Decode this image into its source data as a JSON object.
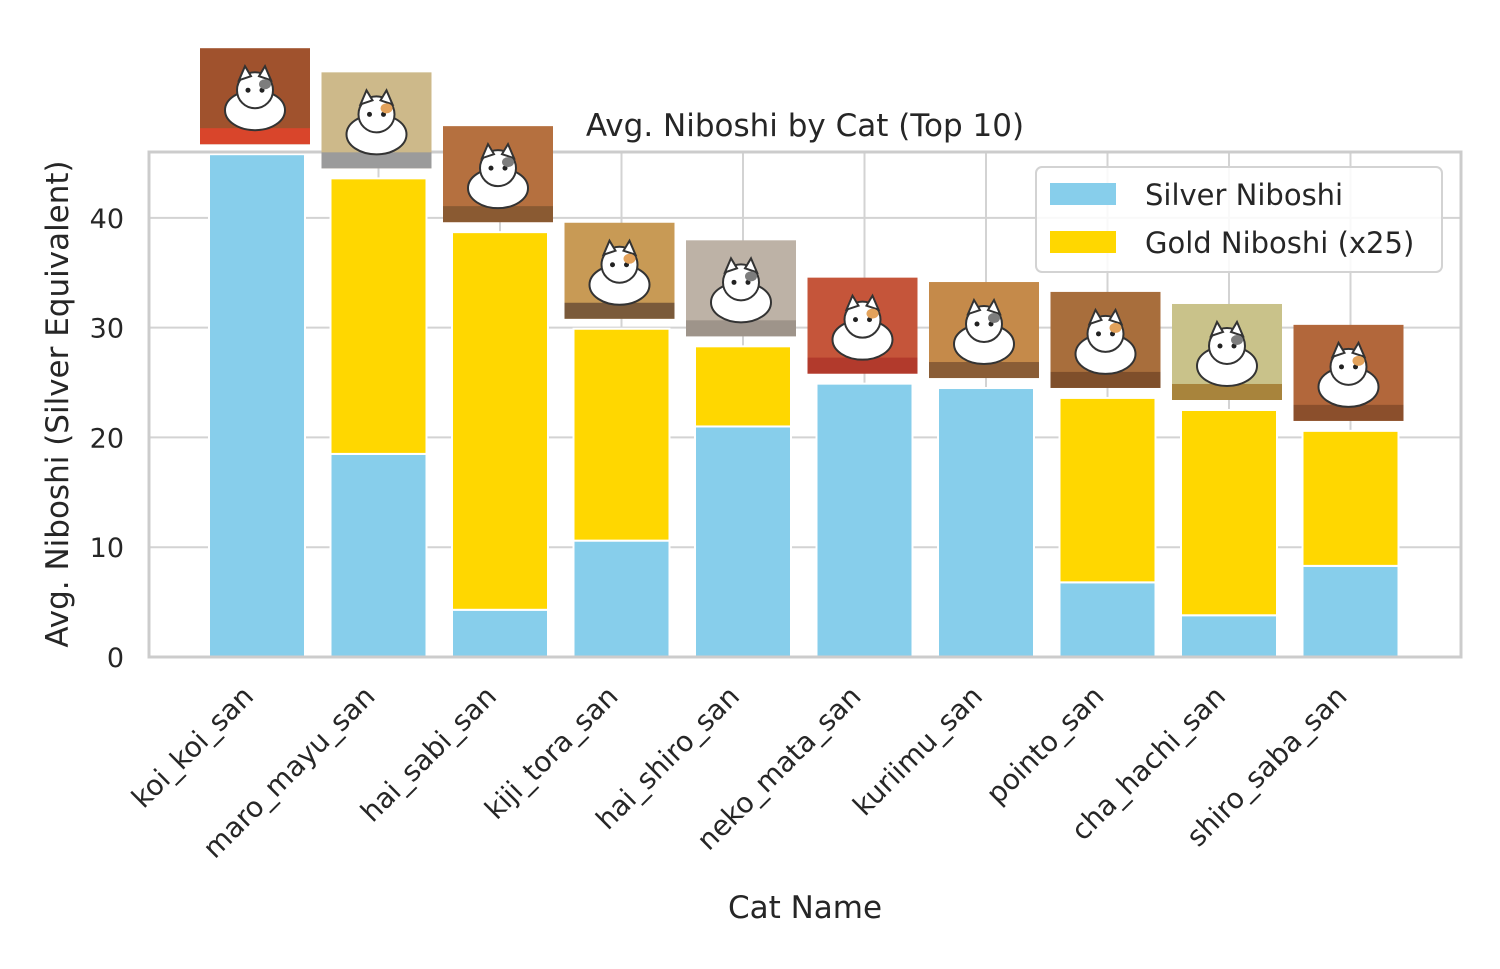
{
  "chart_data": {
    "type": "bar",
    "stacked": true,
    "title": "Avg. Niboshi by Cat (Top 10)",
    "xlabel": "Cat Name",
    "ylabel": "Avg. Niboshi (Silver Equivalent)",
    "ylim": [
      0,
      46
    ],
    "yticks": [
      0,
      10,
      20,
      30,
      40
    ],
    "grid": true,
    "legend_position": "top-right",
    "categories": [
      "koi_koi_san",
      "maro_mayu_san",
      "hai_sabi_san",
      "kiji_tora_san",
      "hai_shiro_san",
      "neko_mata_san",
      "kuriimu_san",
      "pointo_san",
      "cha_hachi_san",
      "shiro_saba_san"
    ],
    "series": [
      {
        "name": "Silver Niboshi",
        "color": "#87CEEB",
        "values": [
          45.8,
          18.5,
          4.3,
          10.6,
          21.0,
          24.9,
          24.5,
          6.8,
          3.8,
          8.3
        ]
      },
      {
        "name": "Gold Niboshi (x25)",
        "color": "#FFD700",
        "values": [
          0,
          25.1,
          34.4,
          19.3,
          7.3,
          0,
          0,
          16.8,
          18.7,
          12.3
        ]
      }
    ],
    "cat_icons": [
      "maneki-calico-cat-icon",
      "noble-tuxedo-cat-icon",
      "scratch-post-tortoiseshell-cat-icon",
      "bowl-tabby-cat-icon",
      "ball-playing-cat-icon",
      "cushion-white-cat-icon",
      "yarn-cream-cat-icon",
      "floor-pointo-cat-icon",
      "brown-patch-cat-icon",
      "floor-mackerel-cat-icon"
    ]
  }
}
